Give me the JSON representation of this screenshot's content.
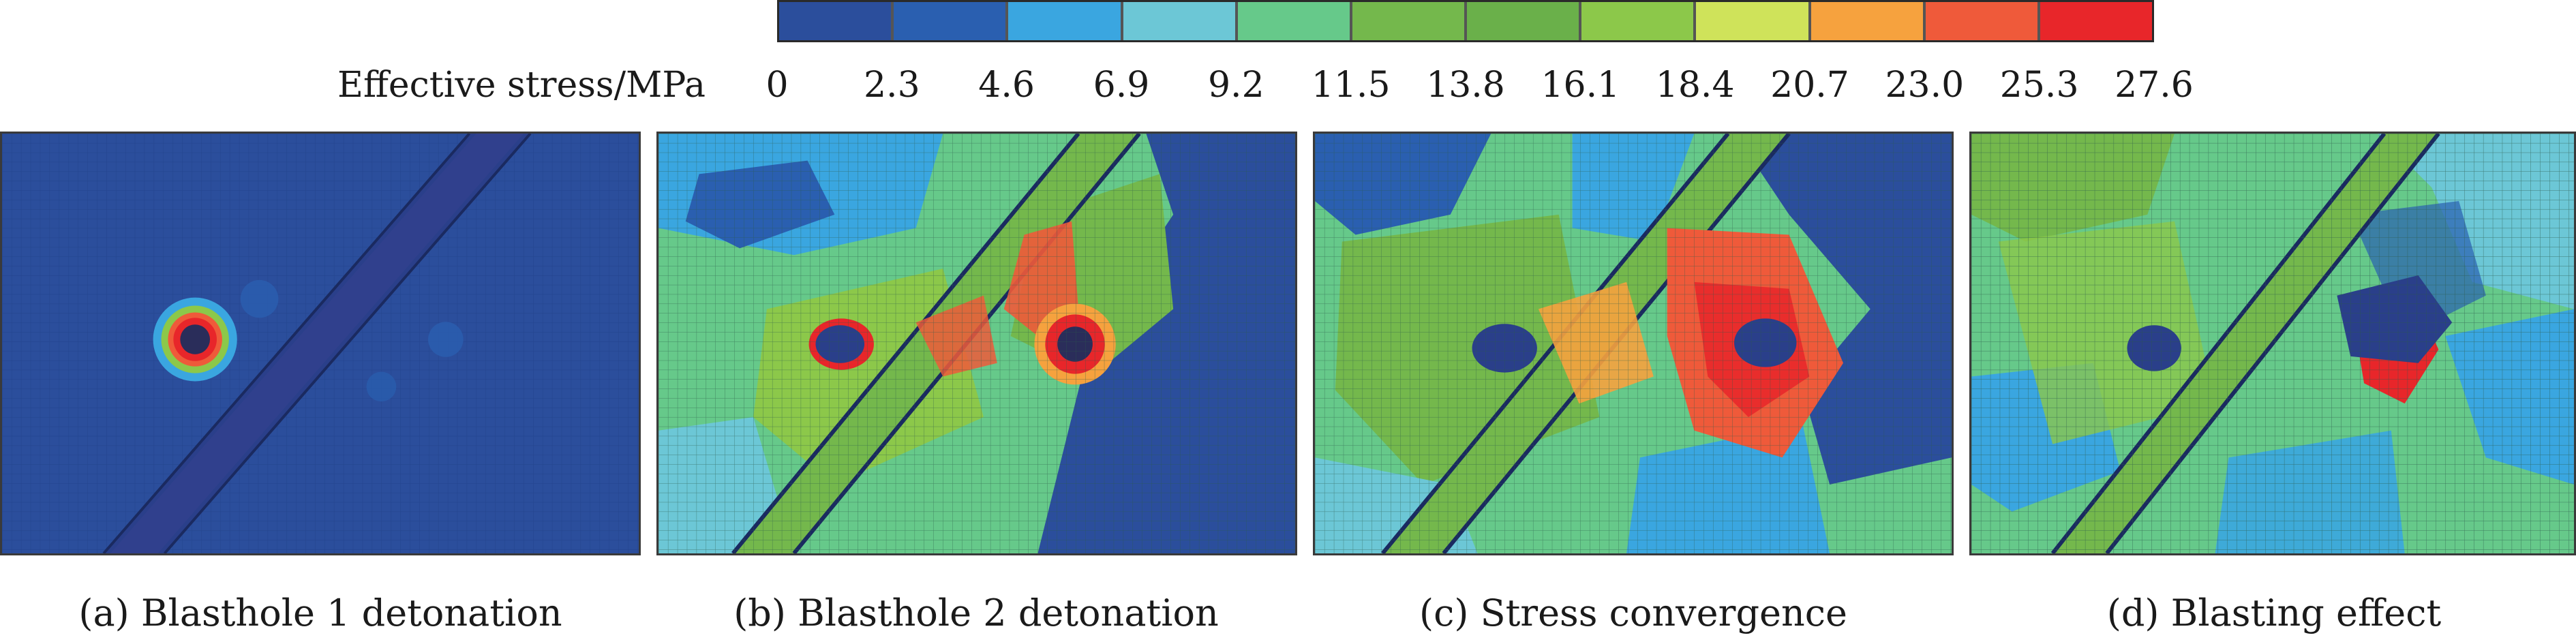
{
  "legend": {
    "title": "Effective stress/MPa",
    "ticks": [
      "0",
      "2.3",
      "4.6",
      "6.9",
      "9.2",
      "11.5",
      "13.8",
      "16.1",
      "18.4",
      "20.7",
      "23.0",
      "25.3",
      "27.6"
    ],
    "colors": [
      "#2b4e9c",
      "#2a5fb0",
      "#3aa6e0",
      "#6cc7d6",
      "#66c98a",
      "#74b84c",
      "#6ab04a",
      "#8cc84a",
      "#cfe35a",
      "#f6a23e",
      "#ef5a3a",
      "#e8262a"
    ]
  },
  "panels": [
    {
      "caption": "(a) Blasthole 1 detonation"
    },
    {
      "caption": "(b) Blasthole 2 detonation"
    },
    {
      "caption": "(c) Stress convergence"
    },
    {
      "caption": "(d) Blasting effect"
    }
  ]
}
